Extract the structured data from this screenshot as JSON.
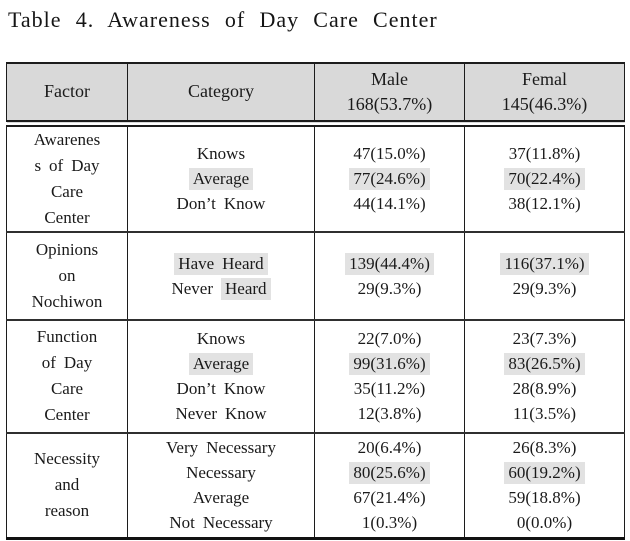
{
  "title": "Table 4. Awareness of Day Care Center",
  "colors": {
    "header_bg": "#d9d9d9",
    "highlight_bg": "#e2e2e2",
    "border": "#1c1c1c",
    "text": "#1a1a1a"
  },
  "header": {
    "factor": "Factor",
    "category": "Category",
    "male": "Male\n168(53.7%)",
    "female": "Femal\n145(46.3%)"
  },
  "sections": [
    {
      "factor": "Awarenes\ns of Day\nCare\nCenter",
      "rows": [
        {
          "category": [
            {
              "t": "Knows",
              "h": false
            }
          ],
          "male": [
            {
              "t": "47(15.0%)",
              "h": false
            }
          ],
          "female": [
            {
              "t": "37(11.8%)",
              "h": false
            }
          ]
        },
        {
          "category": [
            {
              "t": "Average",
              "h": true
            }
          ],
          "male": [
            {
              "t": "77(24.6%)",
              "h": true
            }
          ],
          "female": [
            {
              "t": "70(22.4%)",
              "h": true
            }
          ]
        },
        {
          "category": [
            {
              "t": "Don’t Know",
              "h": false
            }
          ],
          "male": [
            {
              "t": "44(14.1%)",
              "h": false
            }
          ],
          "female": [
            {
              "t": "38(12.1%)",
              "h": false
            }
          ]
        }
      ]
    },
    {
      "factor": "Opinions\non\nNochiwon",
      "rows": [
        {
          "category": [
            {
              "t": "Have Heard",
              "h": true
            }
          ],
          "male": [
            {
              "t": "139(44.4%)",
              "h": true
            }
          ],
          "female": [
            {
              "t": "116(37.1%)",
              "h": true
            }
          ]
        },
        {
          "category": [
            {
              "t": "Never ",
              "h": false
            },
            {
              "t": "Heard",
              "h": true
            }
          ],
          "male": [
            {
              "t": "29(9.3%)",
              "h": false
            }
          ],
          "female": [
            {
              "t": "29(9.3%)",
              "h": false
            }
          ]
        }
      ]
    },
    {
      "factor": "Function\nof Day\nCare\nCenter",
      "rows": [
        {
          "category": [
            {
              "t": "Knows",
              "h": false
            }
          ],
          "male": [
            {
              "t": "22(7.0%)",
              "h": false
            }
          ],
          "female": [
            {
              "t": "23(7.3%)",
              "h": false
            }
          ]
        },
        {
          "category": [
            {
              "t": "Average",
              "h": true
            }
          ],
          "male": [
            {
              "t": "99(31.6%)",
              "h": true
            }
          ],
          "female": [
            {
              "t": "83(26.5%)",
              "h": true
            }
          ]
        },
        {
          "category": [
            {
              "t": "Don’t Know",
              "h": false
            }
          ],
          "male": [
            {
              "t": "35(11.2%)",
              "h": false
            }
          ],
          "female": [
            {
              "t": "28(8.9%)",
              "h": false
            }
          ]
        },
        {
          "category": [
            {
              "t": "Never Know",
              "h": false
            }
          ],
          "male": [
            {
              "t": "12(3.8%)",
              "h": false
            }
          ],
          "female": [
            {
              "t": "11(3.5%)",
              "h": false
            }
          ]
        }
      ]
    },
    {
      "factor": "Necessity\nand\nreason",
      "rows": [
        {
          "category": [
            {
              "t": "Very Necessary",
              "h": false
            }
          ],
          "male": [
            {
              "t": "20(6.4%)",
              "h": false
            }
          ],
          "female": [
            {
              "t": "26(8.3%)",
              "h": false
            }
          ]
        },
        {
          "category": [
            {
              "t": "Necessary",
              "h": false
            }
          ],
          "male": [
            {
              "t": "80(25.6%)",
              "h": true
            }
          ],
          "female": [
            {
              "t": "60(19.2%)",
              "h": true
            }
          ]
        },
        {
          "category": [
            {
              "t": "Average",
              "h": false
            }
          ],
          "male": [
            {
              "t": "67(21.4%)",
              "h": false
            }
          ],
          "female": [
            {
              "t": "59(18.8%)",
              "h": false
            }
          ]
        },
        {
          "category": [
            {
              "t": "Not Necessary",
              "h": false
            }
          ],
          "male": [
            {
              "t": "1(0.3%)",
              "h": false
            }
          ],
          "female": [
            {
              "t": "0(0.0%)",
              "h": false
            }
          ]
        }
      ]
    }
  ]
}
